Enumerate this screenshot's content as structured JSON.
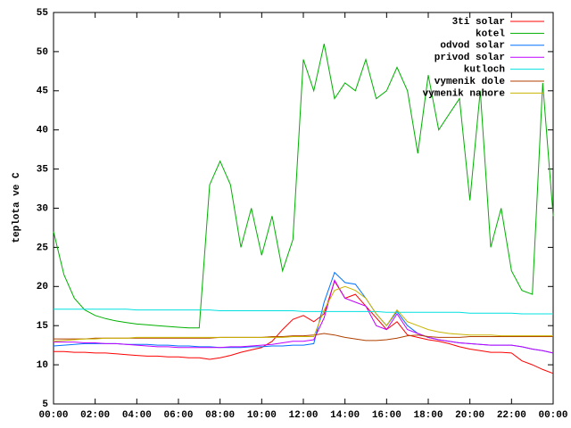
{
  "chart_data": {
    "type": "line",
    "ylabel": "teplota ve C",
    "xlim": [
      0,
      24
    ],
    "ylim": [
      5,
      55
    ],
    "yticks": [
      5,
      10,
      15,
      20,
      25,
      30,
      35,
      40,
      45,
      50,
      55
    ],
    "xticks": [
      {
        "value": 0,
        "label": "00:00"
      },
      {
        "value": 2,
        "label": "02:00"
      },
      {
        "value": 4,
        "label": "04:00"
      },
      {
        "value": 6,
        "label": "06:00"
      },
      {
        "value": 8,
        "label": "08:00"
      },
      {
        "value": 10,
        "label": "10:00"
      },
      {
        "value": 12,
        "label": "12:00"
      },
      {
        "value": 14,
        "label": "14:00"
      },
      {
        "value": 16,
        "label": "16:00"
      },
      {
        "value": 18,
        "label": "18:00"
      },
      {
        "value": 20,
        "label": "20:00"
      },
      {
        "value": 22,
        "label": "22:00"
      },
      {
        "value": 24,
        "label": "00:00"
      }
    ],
    "legend": "top-right",
    "x": [
      0,
      0.5,
      1,
      1.5,
      2,
      2.5,
      3,
      3.5,
      4,
      4.5,
      5,
      5.5,
      6,
      6.5,
      7,
      7.5,
      8,
      8.5,
      9,
      9.5,
      10,
      10.5,
      11,
      11.5,
      12,
      12.5,
      13,
      13.5,
      14,
      14.5,
      15,
      15.5,
      16,
      16.5,
      17,
      17.5,
      18,
      18.5,
      19,
      19.5,
      20,
      20.5,
      21,
      21.5,
      22,
      22.5,
      23,
      23.5,
      24
    ],
    "series": [
      {
        "name": "3ti solar",
        "color": "#ff0000",
        "values": [
          11.7,
          11.7,
          11.6,
          11.6,
          11.5,
          11.5,
          11.4,
          11.3,
          11.2,
          11.1,
          11.1,
          11,
          11,
          10.9,
          10.9,
          10.7,
          10.9,
          11.2,
          11.6,
          11.9,
          12.2,
          13,
          14.5,
          15.8,
          16.3,
          15.5,
          16.5,
          20.7,
          18.5,
          19,
          17.5,
          16,
          14.5,
          15.5,
          13.8,
          13.5,
          13.2,
          13,
          12.7,
          12.3,
          12,
          11.8,
          11.6,
          11.6,
          11.5,
          10.5,
          10,
          9.4,
          8.9
        ]
      },
      {
        "name": "kotel",
        "color": "#00b000",
        "values": [
          27,
          21.5,
          18.5,
          17,
          16.3,
          15.9,
          15.6,
          15.4,
          15.2,
          15.1,
          15,
          14.9,
          14.8,
          14.7,
          14.7,
          33,
          36,
          33,
          25,
          30,
          24,
          29,
          22,
          26,
          49,
          45,
          51,
          44,
          46,
          45,
          49,
          44,
          45,
          48,
          45,
          37,
          47,
          40,
          42,
          44,
          31,
          45,
          25,
          30,
          22,
          19.5,
          19,
          46,
          29
        ]
      },
      {
        "name": "odvod solar",
        "color": "#0070ff",
        "values": [
          12.4,
          12.5,
          12.6,
          12.7,
          12.7,
          12.7,
          12.7,
          12.6,
          12.6,
          12.6,
          12.5,
          12.5,
          12.4,
          12.4,
          12.3,
          12.3,
          12.2,
          12.2,
          12.2,
          12.3,
          12.3,
          12.4,
          12.4,
          12.5,
          12.5,
          12.7,
          18,
          21.8,
          20.5,
          20.3,
          18.5,
          16.5,
          15,
          16.8,
          15,
          14,
          13.5,
          13.2,
          13,
          12.8,
          12.7,
          12.6,
          12.5,
          12.5,
          12.5,
          12.3,
          12,
          11.8,
          11.5
        ]
      },
      {
        "name": "privod solar",
        "color": "#c000ff",
        "values": [
          12.9,
          12.9,
          12.9,
          12.8,
          12.8,
          12.7,
          12.7,
          12.6,
          12.5,
          12.4,
          12.3,
          12.3,
          12.2,
          12.2,
          12.2,
          12.2,
          12.2,
          12.3,
          12.3,
          12.4,
          12.5,
          12.6,
          12.8,
          13,
          13,
          13.2,
          16,
          20.8,
          18.5,
          18,
          17.5,
          15,
          14.5,
          16.5,
          14.5,
          14,
          13.5,
          13.2,
          13,
          12.8,
          12.7,
          12.6,
          12.5,
          12.5,
          12.5,
          12.3,
          12,
          11.8,
          11.5
        ]
      },
      {
        "name": "kutloch",
        "color": "#00e0e0",
        "values": [
          17.1,
          17.1,
          17.1,
          17.1,
          17.1,
          17.1,
          17.1,
          17.1,
          17,
          17,
          17,
          17,
          17,
          17,
          17,
          17,
          16.9,
          16.9,
          16.9,
          16.9,
          16.9,
          16.9,
          16.9,
          16.9,
          16.8,
          16.8,
          16.8,
          16.8,
          16.8,
          16.8,
          16.8,
          16.8,
          16.7,
          16.7,
          16.7,
          16.7,
          16.7,
          16.7,
          16.7,
          16.7,
          16.6,
          16.6,
          16.6,
          16.6,
          16.6,
          16.5,
          16.5,
          16.5,
          16.5
        ]
      },
      {
        "name": "vymenik dole",
        "color": "#b04000",
        "values": [
          13.3,
          13.3,
          13.3,
          13.3,
          13.4,
          13.4,
          13.4,
          13.4,
          13.4,
          13.4,
          13.4,
          13.4,
          13.4,
          13.4,
          13.4,
          13.4,
          13.5,
          13.5,
          13.5,
          13.5,
          13.5,
          13.6,
          13.6,
          13.7,
          13.7,
          13.8,
          14,
          13.8,
          13.5,
          13.3,
          13.1,
          13.1,
          13.2,
          13.4,
          13.7,
          13.8,
          13.6,
          13.5,
          13.5,
          13.5,
          13.6,
          13.6,
          13.6,
          13.6,
          13.6,
          13.6,
          13.6,
          13.6,
          13.6
        ]
      },
      {
        "name": "vymenik nahore",
        "color": "#c8b400",
        "values": [
          13,
          13.1,
          13.2,
          13.3,
          13.3,
          13.4,
          13.4,
          13.4,
          13.5,
          13.5,
          13.5,
          13.5,
          13.5,
          13.5,
          13.5,
          13.5,
          13.5,
          13.5,
          13.5,
          13.5,
          13.5,
          13.5,
          13.5,
          13.6,
          13.6,
          13.6,
          17,
          19.5,
          20,
          19.5,
          18.5,
          16.5,
          15,
          17,
          15.5,
          15,
          14.5,
          14.2,
          14,
          13.9,
          13.8,
          13.8,
          13.8,
          13.7,
          13.7,
          13.7,
          13.7,
          13.7,
          13.7
        ]
      }
    ]
  }
}
